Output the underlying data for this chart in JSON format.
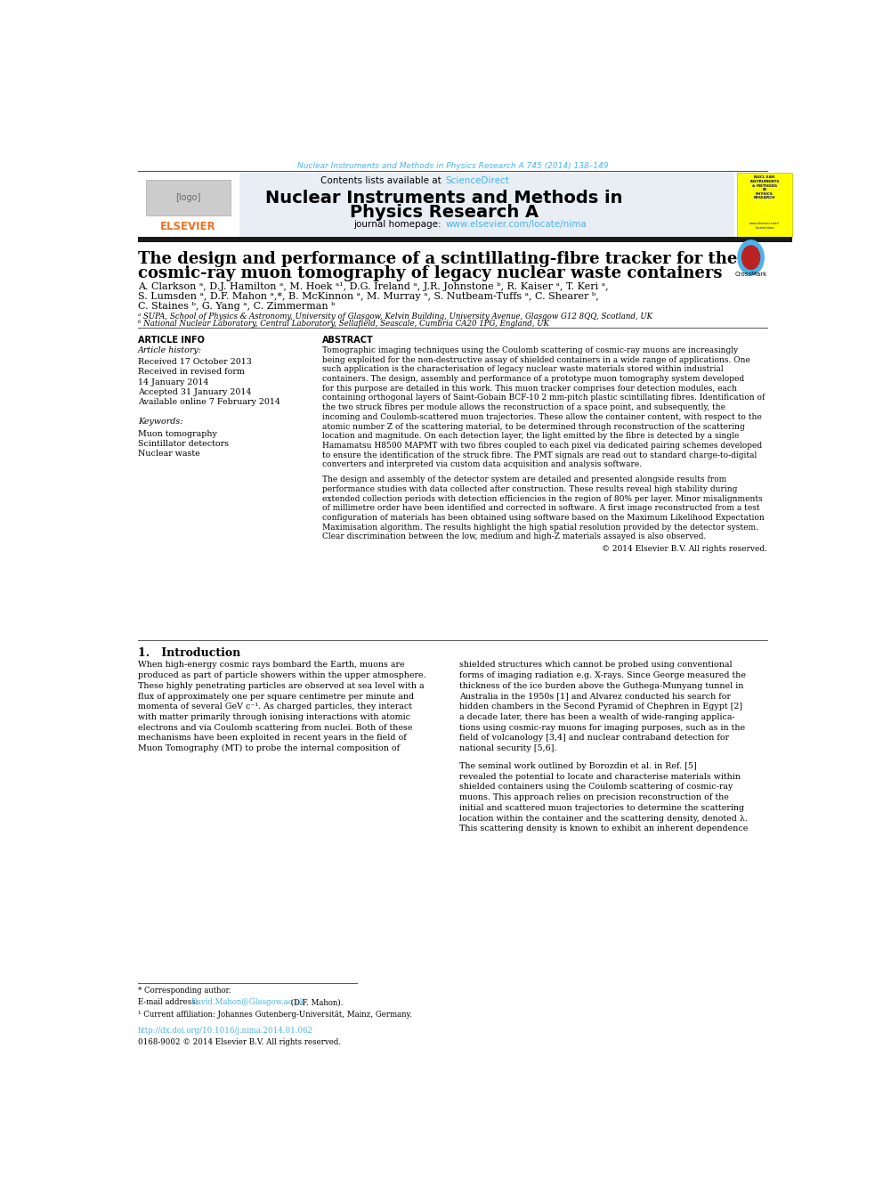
{
  "bg_color": "#ffffff",
  "top_journal_text": "Nuclear Instruments and Methods in Physics Research A 745 (2014) 138–149",
  "top_journal_color": "#4ab3e8",
  "header_bg": "#e8eef4",
  "header_title_line1": "Nuclear Instruments and Methods in",
  "header_title_line2": "Physics Research A",
  "header_contents": "Contents lists available at ",
  "header_sciencedirect": "ScienceDirect",
  "header_homepage": "journal homepage: ",
  "header_url": "www.elsevier.com/locate/nima",
  "elsevier_color": "#f07020",
  "link_color": "#4ab3e8",
  "divider_color": "#222222",
  "yellow_box_bg": "#ffff00",
  "yellow_box_text_color": "#000080",
  "article_title_line1": "The design and performance of a scintillating-fibre tracker for the",
  "article_title_line2": "cosmic-ray muon tomography of legacy nuclear waste containers",
  "authors_line1": "A. Clarkson ᵃ, D.J. Hamilton ᵃ, M. Hoek ᵃ¹, D.G. Ireland ᵃ, J.R. Johnstone ᵇ, R. Kaiser ᵃ, T. Keri ᵃ,",
  "authors_line2": "S. Lumsden ᵃ, D.F. Mahon ᵃ,*, B. McKinnon ᵃ, M. Murray ᵃ, S. Nutbeam-Tuffs ᵃ, C. Shearer ᵇ,",
  "authors_line3": "C. Staines ᵇ, G. Yang ᵃ, C. Zimmerman ᵇ",
  "affil_a": "ᵃ SUPA, School of Physics & Astronomy, University of Glasgow, Kelvin Building, University Avenue, Glasgow G12 8QQ, Scotland, UK",
  "affil_b": "ᵇ National Nuclear Laboratory, Central Laboratory, Sellafield, Seascale, Cumbria CA20 1PG, England, UK",
  "article_info_label": "ARTICLE INFO",
  "abstract_label": "ABSTRACT",
  "article_history_label": "Article history:",
  "received_line": "Received 17 October 2013",
  "revised_line": "Received in revised form",
  "revised_date": "14 January 2014",
  "accepted_line": "Accepted 31 January 2014",
  "available_line": "Available online 7 February 2014",
  "keywords_label": "Keywords:",
  "kw1": "Muon tomography",
  "kw2": "Scintillator detectors",
  "kw3": "Nuclear waste",
  "abstract_text": "Tomographic imaging techniques using the Coulomb scattering of cosmic-ray muons are increasingly\nbeing exploited for the non-destructive assay of shielded containers in a wide range of applications. One\nsuch application is the characterisation of legacy nuclear waste materials stored within industrial\ncontainers. The design, assembly and performance of a prototype muon tomography system developed\nfor this purpose are detailed in this work. This muon tracker comprises four detection modules, each\ncontaining orthogonal layers of Saint-Gobain BCF-10 2 mm-pitch plastic scintillating fibres. Identification of\nthe two struck fibres per module allows the reconstruction of a space point, and subsequently, the\nincoming and Coulomb-scattered muon trajectories. These allow the container content, with respect to the\natomic number Z of the scattering material, to be determined through reconstruction of the scattering\nlocation and magnitude. On each detection layer, the light emitted by the fibre is detected by a single\nHamamatsu H8500 MAPMT with two fibres coupled to each pixel via dedicated pairing schemes developed\nto ensure the identification of the struck fibre. The PMT signals are read out to standard charge-to-digital\nconverters and interpreted via custom data acquisition and analysis software.",
  "abstract_text2": "The design and assembly of the detector system are detailed and presented alongside results from\nperformance studies with data collected after construction. These results reveal high stability during\nextended collection periods with detection efficiencies in the region of 80% per layer. Minor misalignments\nof millimetre order have been identified and corrected in software. A first image reconstructed from a test\nconfiguration of materials has been obtained using software based on the Maximum Likelihood Expectation\nMaximisation algorithm. The results highlight the high spatial resolution provided by the detector system.\nClear discrimination between the low, medium and high-Z materials assayed is also observed.",
  "copyright_line": "© 2014 Elsevier B.V. All rights reserved.",
  "section1_title": "1.   Introduction",
  "intro_col1": "When high-energy cosmic rays bombard the Earth, muons are\nproduced as part of particle showers within the upper atmosphere.\nThese highly penetrating particles are observed at sea level with a\nflux of approximately one per square centimetre per minute and\nmomenta of several GeV c⁻¹. As charged particles, they interact\nwith matter primarily through ionising interactions with atomic\nelectrons and via Coulomb scattering from nuclei. Both of these\nmechanisms have been exploited in recent years in the field of\nMuon Tomography (MT) to probe the internal composition of",
  "intro_col2": "shielded structures which cannot be probed using conventional\nforms of imaging radiation e.g. X-rays. Since George measured the\nthickness of the ice burden above the Guthega-Munyang tunnel in\nAustralia in the 1950s [1] and Alvarez conducted his search for\nhidden chambers in the Second Pyramid of Chephren in Egypt [2]\na decade later, there has been a wealth of wide-ranging applica-\ntions using cosmic-ray muons for imaging purposes, such as in the\nfield of volcanology [3,4] and nuclear contraband detection for\nnational security [5,6].",
  "intro_col2b": "The seminal work outlined by Borozdin et al. in Ref. [5]\nrevealed the potential to locate and characterise materials within\nshielded containers using the Coulomb scattering of cosmic-ray\nmuons. This approach relies on precision reconstruction of the\ninitial and scattered muon trajectories to determine the scattering\nlocation within the container and the scattering density, denoted λ.\nThis scattering density is known to exhibit an inherent dependence",
  "footnote_corresponding": "* Corresponding author.",
  "footnote_email_label": "E-mail address: ",
  "footnote_email": "David.Mahon@Glasgow.ac.uk",
  "footnote_email_suffix": " (D.F. Mahon).",
  "footnote_1": "¹ Current affiliation: Johannes Gutenberg-Universität, Mainz, Germany.",
  "doi_line": "http://dx.doi.org/10.1016/j.nima.2014.01.062",
  "issn_line": "0168-9002 © 2014 Elsevier B.V. All rights reserved."
}
